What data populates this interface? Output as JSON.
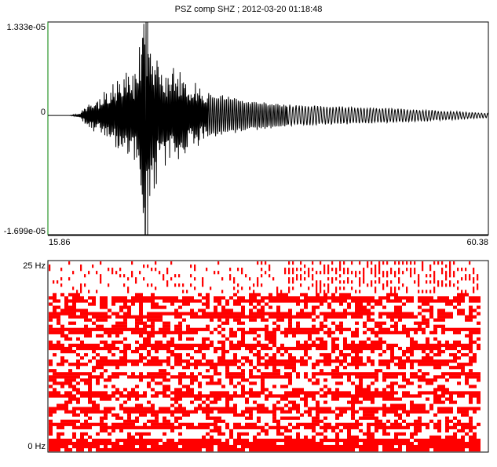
{
  "window": {
    "title": "PSZ  comp   SHZ ; 2012-03-20 01:18:48"
  },
  "seismogram": {
    "y_max_label": "1.333e-05",
    "y_zero_label": "0",
    "y_min_label": "-1.699e-05",
    "x_start_label": "15.86",
    "x_end_label": "60.38",
    "trace_color": "#000000",
    "pick_marker_color": "#000000",
    "left_axis_color": "#008000"
  },
  "spectrogram": {
    "y_top_label": "25 Hz",
    "y_bottom_label": "0 Hz",
    "fill_color": "#ff0000"
  },
  "chart_data": [
    {
      "type": "line",
      "title": "PSZ  comp   SHZ ; 2012-03-20 01:18:48",
      "xlabel": "",
      "ylabel": "",
      "xlim": [
        15.86,
        60.38
      ],
      "ylim": [
        -1.699e-05,
        1.333e-05
      ],
      "series": [
        {
          "x": [
            15.86,
            18.0,
            19.0,
            20.0,
            21.0,
            22.0,
            23.0,
            24.0,
            25.0,
            25.4,
            25.7,
            26.0,
            27.0,
            28.0,
            29.0,
            30.0,
            31.0,
            32.0,
            34.0,
            36.0,
            38.0,
            40.0,
            45.0,
            50.0,
            55.0,
            60.38
          ],
          "y": [
            0,
            0,
            2e-07,
            1.5e-06,
            2e-06,
            3e-06,
            4e-06,
            5e-06,
            6e-06,
            1.1e-05,
            -1.699e-05,
            -9e-06,
            7e-06,
            -5e-06,
            6e-06,
            -4e-06,
            3.5e-06,
            -3e-06,
            2.5e-06,
            -2e-06,
            1.8e-06,
            -1.5e-06,
            1.2e-06,
            -1e-06,
            7e-07,
            3e-07
          ]
        }
      ]
    },
    {
      "type": "heatmap",
      "title": "",
      "xlabel": "",
      "ylabel": "",
      "xlim": [
        15.86,
        60.38
      ],
      "ylim": [
        0,
        25
      ]
    }
  ]
}
